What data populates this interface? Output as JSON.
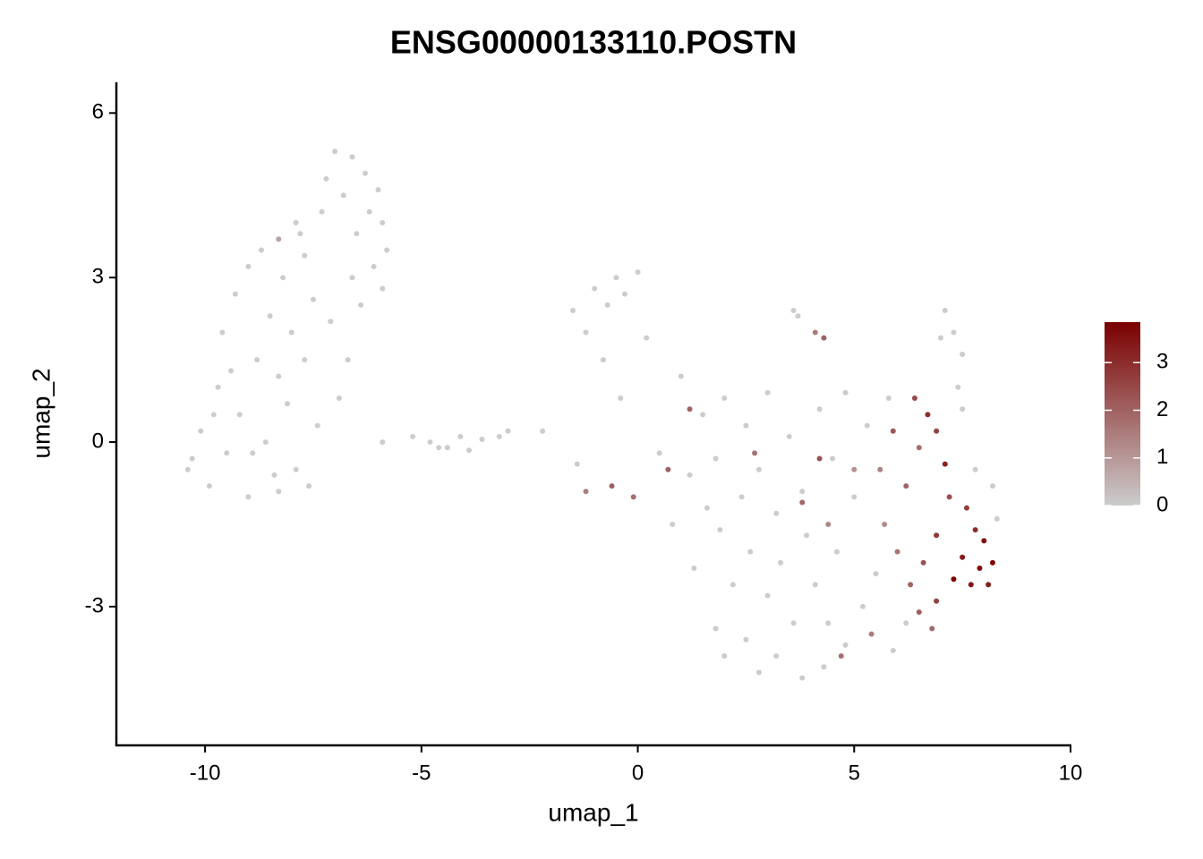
{
  "chart_data": {
    "type": "scatter",
    "title": "ENSG00000133110.POSTN",
    "x_label": "umap_1",
    "y_label": "umap_2",
    "xlim": [
      -12.05,
      10
    ],
    "ylim": [
      -5.53,
      6.56
    ],
    "xticks": [
      -10,
      -5,
      0,
      5,
      10
    ],
    "yticks": [
      -3,
      0,
      3,
      6
    ],
    "x": [
      -10.3,
      -10.1,
      -9.9,
      -9.7,
      -9.6,
      -9.5,
      -9.3,
      -9.2,
      -9.0,
      -9.0,
      -8.8,
      -8.7,
      -8.6,
      -8.5,
      -8.4,
      -8.3,
      -8.2,
      -8.1,
      -8.0,
      -7.9,
      -7.8,
      -7.7,
      -7.6,
      -7.5,
      -7.4,
      -7.3,
      -7.2,
      -7.0,
      -6.8,
      -6.6,
      -6.5,
      -6.3,
      -6.2,
      -6.0,
      -5.9,
      -5.8,
      -6.4,
      -6.7,
      -6.9,
      -7.1,
      -6.6,
      -7.9,
      -9.4,
      -8.9,
      -9.8,
      -10.4,
      -8.3,
      -7.7,
      -6.1,
      -5.9,
      -5.9,
      -5.2,
      -4.8,
      -4.4,
      -4.1,
      -3.9,
      -3.6,
      -3.2,
      -4.6,
      -3.0,
      -2.2,
      -1.5,
      -1.2,
      -1.0,
      -0.7,
      -0.5,
      -0.3,
      0.0,
      -0.8,
      -0.4,
      0.2,
      -1.4,
      1.0,
      1.5,
      2.0,
      2.5,
      1.8,
      1.2,
      2.4,
      3.0,
      3.5,
      2.8,
      3.2,
      1.9,
      2.6,
      3.8,
      4.2,
      4.5,
      3.9,
      2.2,
      3.0,
      1.8,
      2.5,
      3.2,
      3.8,
      4.3,
      4.8,
      3.6,
      4.1,
      4.6,
      2.8,
      2.0,
      1.3,
      1.6,
      5.2,
      5.5,
      5.0,
      5.3,
      5.8,
      4.8,
      3.6,
      3.7,
      7.1,
      7.3,
      7.5,
      7.4,
      7.5,
      7.0,
      8.3,
      8.2,
      7.8,
      0.5,
      0.8,
      3.3,
      4.4,
      5.9,
      6.2,
      -8.3,
      -1.2,
      -0.6,
      -0.1,
      0.7,
      4.1,
      4.3,
      6.4,
      6.7,
      6.9,
      7.1,
      6.5,
      5.9,
      5.6,
      6.2,
      7.2,
      7.6,
      7.8,
      8.0,
      8.2,
      7.9,
      7.5,
      7.3,
      7.7,
      8.1,
      6.9,
      6.6,
      6.3,
      6.9,
      6.5,
      6.0,
      5.7,
      5.4,
      4.7,
      4.4,
      3.8,
      5.0,
      4.2,
      2.7,
      1.2,
      6.8
    ],
    "y": [
      -0.3,
      0.2,
      -0.8,
      1.0,
      2.0,
      -0.2,
      2.7,
      0.5,
      3.2,
      -1.0,
      1.5,
      3.5,
      0.0,
      2.3,
      -0.6,
      1.2,
      3.0,
      0.7,
      2.0,
      -0.5,
      3.8,
      1.5,
      -0.8,
      2.6,
      0.3,
      4.2,
      4.8,
      5.3,
      4.5,
      5.2,
      3.8,
      4.9,
      4.2,
      4.6,
      4.0,
      3.5,
      2.5,
      1.5,
      0.8,
      2.2,
      3.0,
      4.0,
      1.3,
      -0.2,
      0.5,
      -0.5,
      -0.9,
      3.4,
      3.2,
      2.8,
      0.0,
      0.1,
      0.0,
      -0.1,
      0.1,
      -0.15,
      0.05,
      0.1,
      -0.1,
      0.2,
      0.2,
      2.4,
      2.0,
      2.8,
      2.5,
      3.0,
      2.7,
      3.1,
      1.5,
      0.8,
      1.9,
      -0.4,
      1.2,
      0.5,
      0.8,
      0.3,
      -0.3,
      -0.6,
      -1.0,
      0.9,
      0.1,
      -0.5,
      -1.3,
      -1.6,
      -2.0,
      -0.9,
      0.6,
      -0.3,
      -1.7,
      -2.6,
      -2.8,
      -3.4,
      -3.6,
      -3.9,
      -4.3,
      -4.1,
      -3.7,
      -3.3,
      -2.6,
      -2.0,
      -4.2,
      -3.9,
      -2.3,
      -1.2,
      -3.0,
      -2.4,
      -1.0,
      0.3,
      0.8,
      0.9,
      2.4,
      2.3,
      2.4,
      2.0,
      1.6,
      1.0,
      0.6,
      1.9,
      -1.4,
      -0.8,
      -0.5,
      -0.2,
      -1.5,
      -2.2,
      -3.3,
      -3.8,
      -3.3,
      3.7,
      -0.9,
      -0.8,
      -1.0,
      -0.5,
      2.0,
      1.9,
      0.8,
      0.5,
      0.2,
      -0.4,
      -0.1,
      0.2,
      -0.5,
      -0.8,
      -1.0,
      -1.2,
      -1.6,
      -1.8,
      -2.2,
      -2.3,
      -2.1,
      -2.5,
      -2.6,
      -2.6,
      -1.7,
      -2.2,
      -2.6,
      -2.9,
      -3.1,
      -2.0,
      -1.5,
      -3.5,
      -3.9,
      -1.5,
      -1.1,
      -0.5,
      -0.3,
      -0.2,
      0.6,
      -3.4
    ],
    "values": [
      0,
      0,
      0,
      0,
      0,
      0,
      0,
      0,
      0,
      0,
      0,
      0,
      0,
      0,
      0,
      0,
      0,
      0,
      0,
      0,
      0,
      0,
      0,
      0,
      0,
      0,
      0,
      0,
      0,
      0,
      0,
      0,
      0,
      0,
      0,
      0,
      0,
      0,
      0,
      0,
      0,
      0,
      0,
      0,
      0,
      0,
      0,
      0,
      0,
      0,
      0,
      0,
      0,
      0,
      0,
      0,
      0,
      0,
      0,
      0,
      0,
      0,
      0,
      0,
      0,
      0,
      0,
      0,
      0,
      0,
      0,
      0,
      0,
      0,
      0,
      0,
      0,
      0,
      0,
      0,
      0,
      0,
      0,
      0,
      0,
      0,
      0,
      0,
      0,
      0,
      0,
      0,
      0,
      0,
      0,
      0,
      0,
      0,
      0,
      0,
      0,
      0,
      0,
      0,
      0,
      0,
      0,
      0,
      0,
      0,
      0,
      0,
      0,
      0,
      0,
      0,
      0,
      0,
      0,
      0,
      0,
      0,
      0,
      0,
      0,
      0,
      0,
      0.8,
      1.5,
      2.0,
      1.8,
      2.0,
      1.5,
      2.0,
      2.5,
      3.0,
      2.6,
      3.2,
      1.8,
      2.2,
      1.4,
      2.0,
      2.4,
      2.7,
      3.0,
      3.5,
      3.7,
      3.6,
      3.4,
      3.8,
      3.5,
      3.3,
      2.8,
      2.3,
      2.0,
      2.6,
      2.1,
      1.6,
      1.2,
      1.5,
      1.8,
      1.3,
      1.9,
      1.1,
      2.3,
      1.7,
      2.0,
      1.9
    ],
    "colorbar": {
      "lim": [
        0,
        3.85
      ],
      "ticks": [
        0,
        1,
        2,
        3
      ],
      "low": "#cccccc",
      "high": "#7a0000"
    }
  }
}
